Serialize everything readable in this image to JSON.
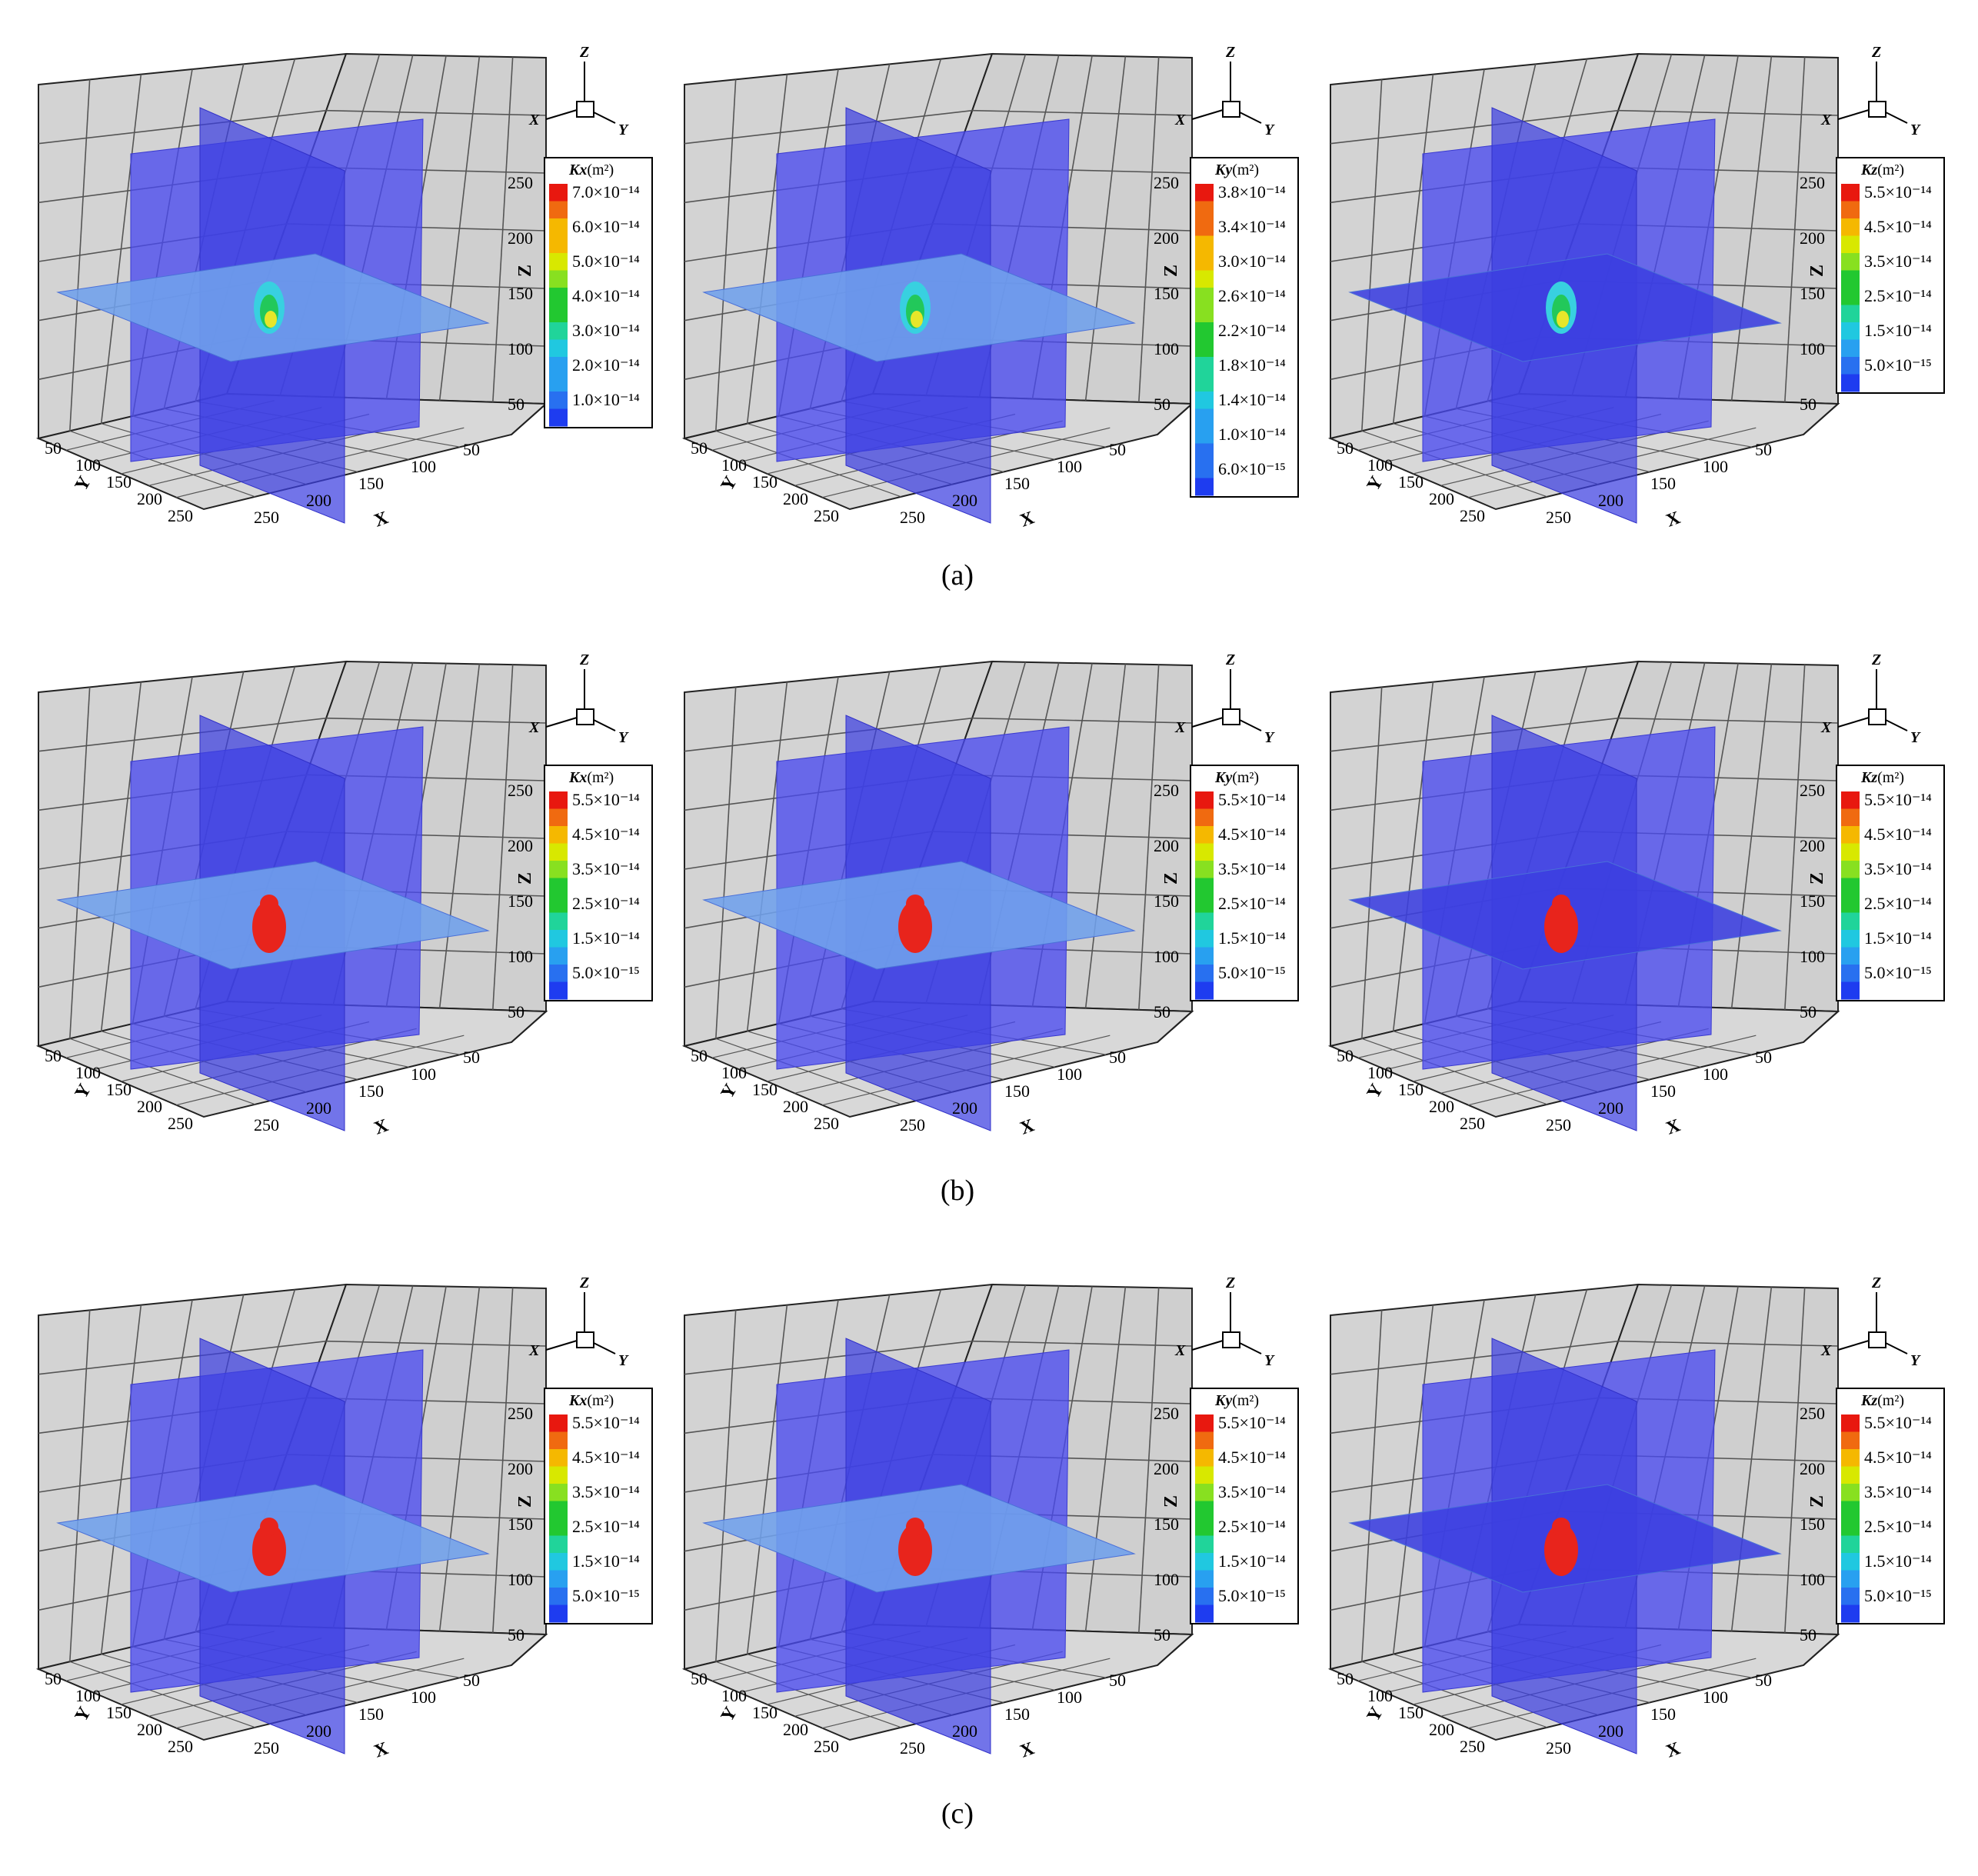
{
  "figure": {
    "rows": [
      {
        "caption": "(a)",
        "panels": [
          {
            "legend": {
              "symbol": "Kx",
              "unit": "(m²)",
              "labels": [
                "7.0×10⁻¹⁴",
                "6.0×10⁻¹⁴",
                "5.0×10⁻¹⁴",
                "4.0×10⁻¹⁴",
                "3.0×10⁻¹⁴",
                "2.0×10⁻¹⁴",
                "1.0×10⁻¹⁴"
              ]
            },
            "slice_tone": "light",
            "blob": "yellow"
          },
          {
            "legend": {
              "symbol": "Ky",
              "unit": "(m²)",
              "labels": [
                "3.8×10⁻¹⁴",
                "3.4×10⁻¹⁴",
                "3.0×10⁻¹⁴",
                "2.6×10⁻¹⁴",
                "2.2×10⁻¹⁴",
                "1.8×10⁻¹⁴",
                "1.4×10⁻¹⁴",
                "1.0×10⁻¹⁴",
                "6.0×10⁻¹⁵"
              ]
            },
            "slice_tone": "light",
            "blob": "yellow"
          },
          {
            "legend": {
              "symbol": "Kz",
              "unit": "(m²)",
              "labels": [
                "5.5×10⁻¹⁴",
                "4.5×10⁻¹⁴",
                "3.5×10⁻¹⁴",
                "2.5×10⁻¹⁴",
                "1.5×10⁻¹⁴",
                "5.0×10⁻¹⁵"
              ]
            },
            "slice_tone": "dark",
            "blob": "yellow"
          }
        ]
      },
      {
        "caption": "(b)",
        "panels": [
          {
            "legend": {
              "symbol": "Kx",
              "unit": "(m²)",
              "labels": [
                "5.5×10⁻¹⁴",
                "4.5×10⁻¹⁴",
                "3.5×10⁻¹⁴",
                "2.5×10⁻¹⁴",
                "1.5×10⁻¹⁴",
                "5.0×10⁻¹⁵"
              ]
            },
            "slice_tone": "light",
            "blob": "red"
          },
          {
            "legend": {
              "symbol": "Ky",
              "unit": "(m²)",
              "labels": [
                "5.5×10⁻¹⁴",
                "4.5×10⁻¹⁴",
                "3.5×10⁻¹⁴",
                "2.5×10⁻¹⁴",
                "1.5×10⁻¹⁴",
                "5.0×10⁻¹⁵"
              ]
            },
            "slice_tone": "light",
            "blob": "red"
          },
          {
            "legend": {
              "symbol": "Kz",
              "unit": "(m²)",
              "labels": [
                "5.5×10⁻¹⁴",
                "4.5×10⁻¹⁴",
                "3.5×10⁻¹⁴",
                "2.5×10⁻¹⁴",
                "1.5×10⁻¹⁴",
                "5.0×10⁻¹⁵"
              ]
            },
            "slice_tone": "dark",
            "blob": "red"
          }
        ]
      },
      {
        "caption": "(c)",
        "panels": [
          {
            "legend": {
              "symbol": "Kx",
              "unit": "(m²)",
              "labels": [
                "5.5×10⁻¹⁴",
                "4.5×10⁻¹⁴",
                "3.5×10⁻¹⁴",
                "2.5×10⁻¹⁴",
                "1.5×10⁻¹⁴",
                "5.0×10⁻¹⁵"
              ]
            },
            "slice_tone": "light",
            "blob": "red"
          },
          {
            "legend": {
              "symbol": "Ky",
              "unit": "(m²)",
              "labels": [
                "5.5×10⁻¹⁴",
                "4.5×10⁻¹⁴",
                "3.5×10⁻¹⁴",
                "2.5×10⁻¹⁴",
                "1.5×10⁻¹⁴",
                "5.0×10⁻¹⁵"
              ]
            },
            "slice_tone": "light",
            "blob": "red"
          },
          {
            "legend": {
              "symbol": "Kz",
              "unit": "(m²)",
              "labels": [
                "5.5×10⁻¹⁴",
                "4.5×10⁻¹⁴",
                "3.5×10⁻¹⁴",
                "2.5×10⁻¹⁴",
                "1.5×10⁻¹⁴",
                "5.0×10⁻¹⁵"
              ]
            },
            "slice_tone": "dark",
            "blob": "red"
          }
        ]
      }
    ],
    "axes": {
      "x_name": "X",
      "y_name": "Y",
      "z_name": "Z",
      "x_ticks": [
        "250",
        "200",
        "150",
        "100",
        "50"
      ],
      "y_ticks": [
        "50",
        "100",
        "150",
        "200",
        "250"
      ],
      "z_ticks": [
        "250",
        "200",
        "150",
        "100",
        "50"
      ]
    },
    "triad": {
      "x": "X",
      "y": "Y",
      "z": "Z"
    },
    "colors": {
      "box_face": "#d3d3d3",
      "grid_line": "#555555",
      "outline": "#222222",
      "slice_blue": "#4a4af0",
      "slice_light": "#6fa0ec",
      "slice_dark": "#3b3fe0",
      "blob_red": "#e8241c",
      "blob_yellow": "#e6e62a",
      "blob_green": "#22c85a"
    },
    "colorbar_colors": [
      "#e8180f",
      "#f06a10",
      "#f5b800",
      "#d8e800",
      "#88e020",
      "#22c830",
      "#20d49a",
      "#20c8e0",
      "#28a0f0",
      "#2870f0",
      "#1e3cf0"
    ]
  }
}
